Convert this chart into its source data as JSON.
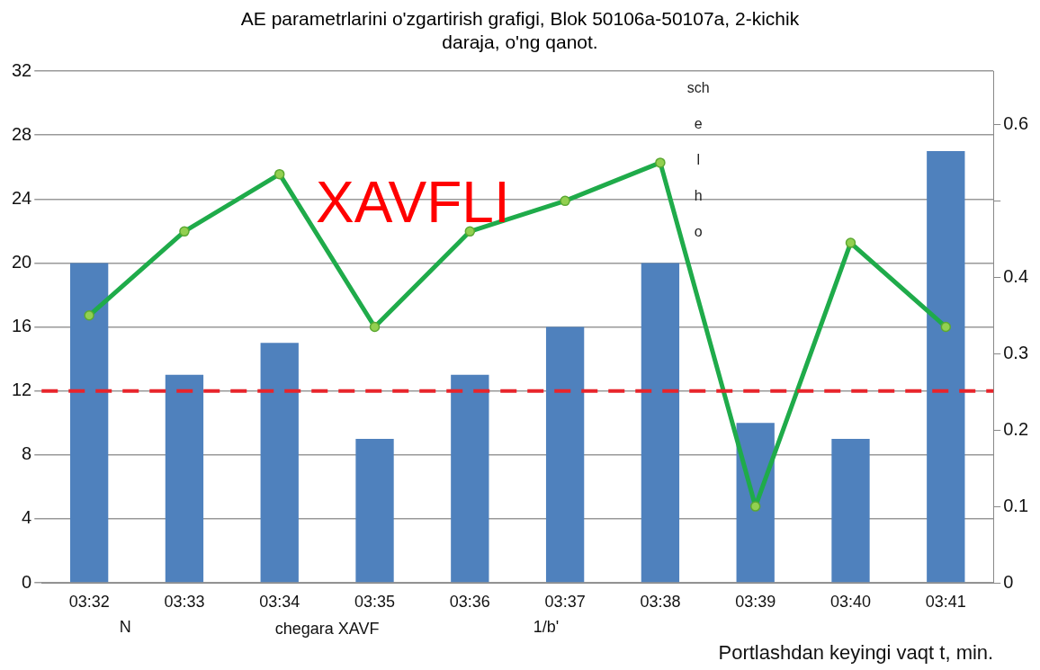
{
  "chart_data": {
    "type": "bar",
    "title": "AE parametrlarini o'zgartirish grafigi, Blok 50106a-50107a, 2-kichik daraja, o'ng qanot.",
    "xlabel": "Portlashdan keyingi vaqt t, min.",
    "categories": [
      "03:32",
      "03:33",
      "03:34",
      "03:35",
      "03:36",
      "03:37",
      "03:38",
      "03:39",
      "03:40",
      "03:41"
    ],
    "series": [
      {
        "color": "#4f81bd",
        "values": [
          20,
          13,
          15,
          9,
          13,
          16,
          20,
          10,
          9,
          27
        ]
      },
      {
        "type": "line",
        "axis": "y2",
        "color": "#1fab4a",
        "values": [
          0.35,
          0.46,
          0.535,
          0.335,
          0.46,
          0.5,
          0.55,
          0.1,
          0.445,
          0.335
        ]
      }
    ],
    "ylim": [
      0,
      32
    ],
    "yticks": [
      0,
      4,
      8,
      12,
      16,
      20,
      24,
      28,
      32
    ],
    "y2lim": [
      0,
      0.67
    ],
    "y2ticks": [
      0,
      0.1,
      0.2,
      0.3,
      0.4,
      {
        "value": 0.5,
        "label": null
      },
      0.6
    ],
    "ref_lines": [
      {
        "axis": "y",
        "value": 12,
        "color": "#e8242b",
        "line_style": "dashed"
      }
    ],
    "annotations": [
      "XAVFLI",
      "sch e l h o",
      "N",
      "chegara XAVF",
      "1/b'"
    ],
    "grid": "y",
    "legend": false,
    "marker": "circle"
  }
}
